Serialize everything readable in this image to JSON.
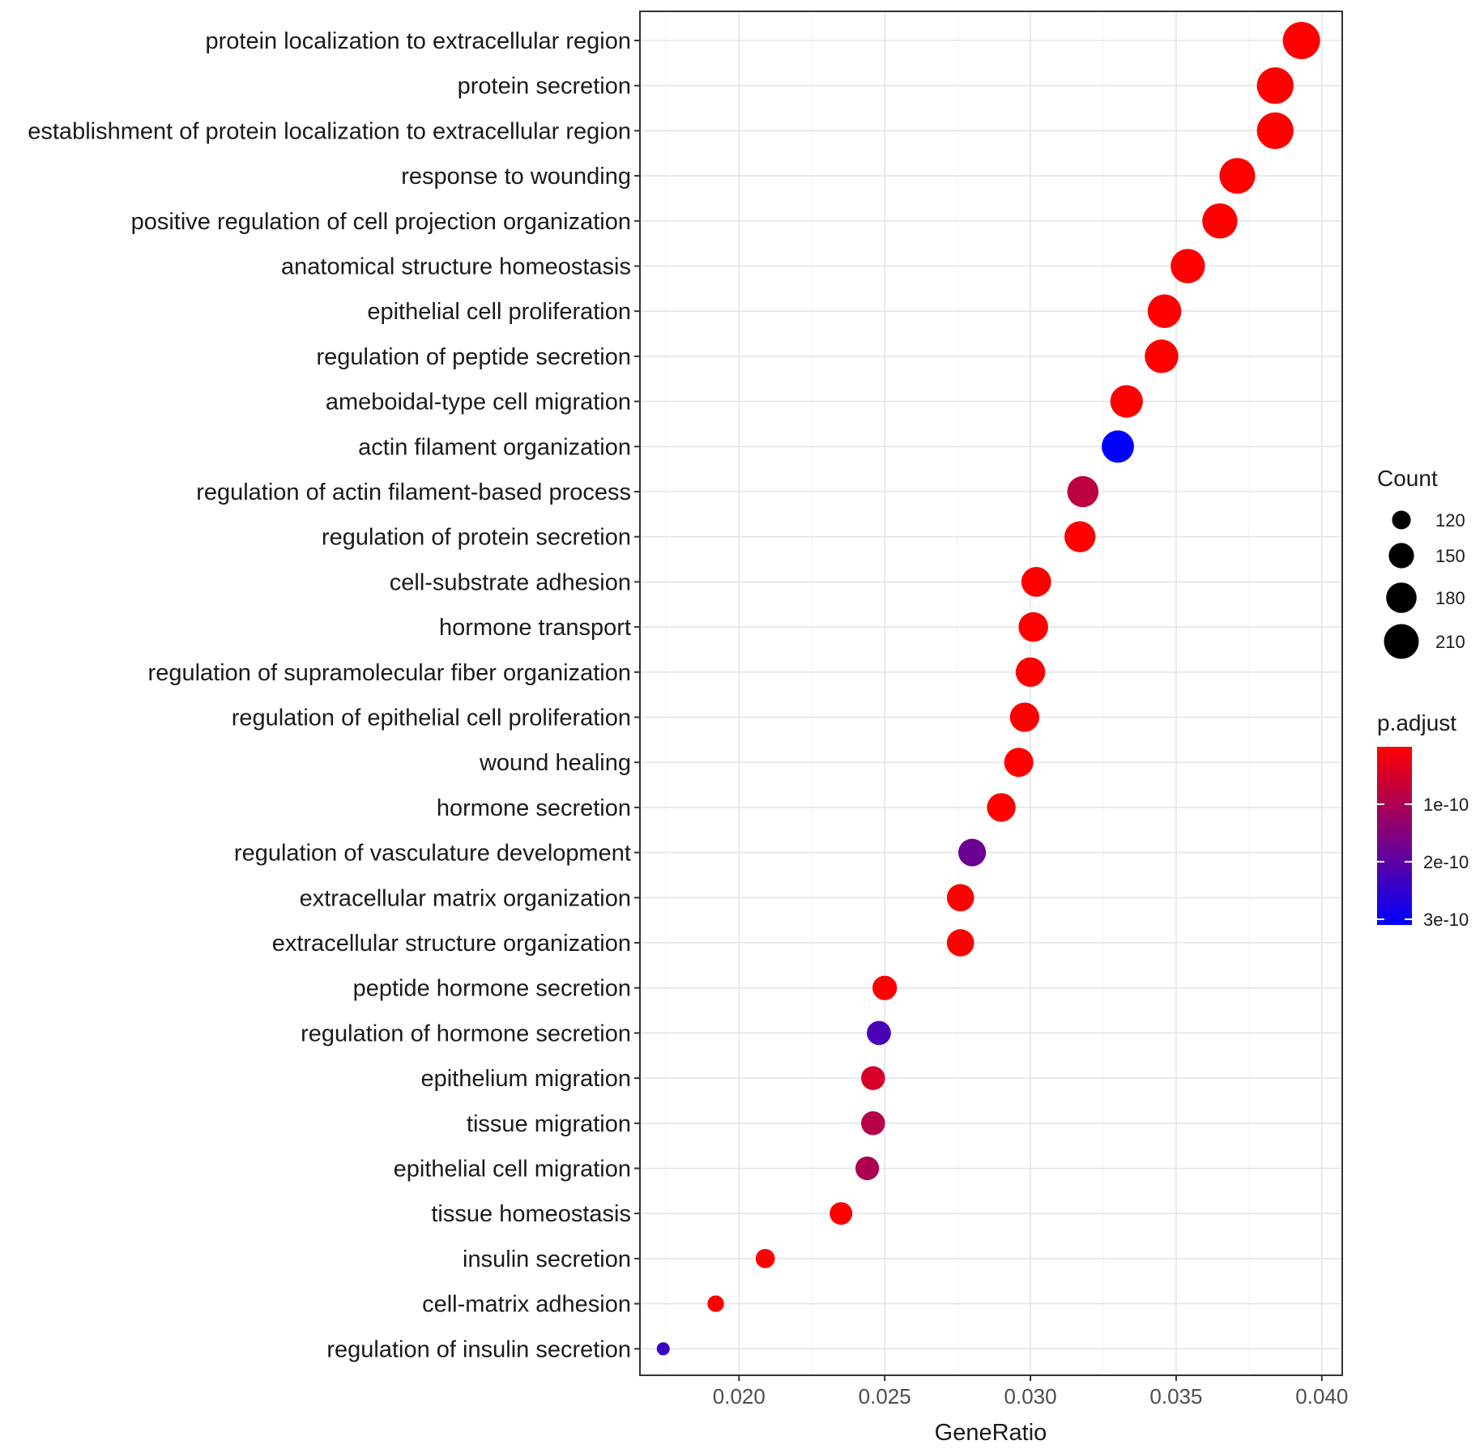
{
  "chart_data": {
    "type": "scatter",
    "subtype": "dotplot",
    "xlabel": "GeneRatio",
    "ylabel": "",
    "xlim": [
      0.0166,
      0.0407
    ],
    "xticks": [
      0.02,
      0.025,
      0.03,
      0.035,
      0.04
    ],
    "xtick_labels": [
      "0.020",
      "0.025",
      "0.030",
      "0.035",
      "0.040"
    ],
    "grid": true,
    "legend_position": "right",
    "categories": [
      "protein localization to extracellular region",
      "protein secretion",
      "establishment of protein localization to extracellular region",
      "response to wounding",
      "positive regulation of cell projection organization",
      "anatomical structure homeostasis",
      "epithelial cell proliferation",
      "regulation of peptide secretion",
      "ameboidal-type cell migration",
      "actin filament organization",
      "regulation of actin filament-based process",
      "regulation of protein secretion",
      "cell-substrate adhesion",
      "hormone transport",
      "regulation of supramolecular fiber organization",
      "regulation of epithelial cell proliferation",
      "wound healing",
      "hormone secretion",
      "regulation of vasculature development",
      "extracellular matrix organization",
      "extracellular structure organization",
      "peptide hormone secretion",
      "regulation of hormone secretion",
      "epithelium migration",
      "tissue migration",
      "epithelial cell migration",
      "tissue homeostasis",
      "insulin secretion",
      "cell-matrix adhesion",
      "regulation of insulin secretion"
    ],
    "gene_ratio": [
      0.0393,
      0.0384,
      0.0384,
      0.0371,
      0.0365,
      0.0354,
      0.0346,
      0.0345,
      0.0333,
      0.033,
      0.0318,
      0.0317,
      0.0302,
      0.0301,
      0.03,
      0.0298,
      0.0296,
      0.029,
      0.028,
      0.0276,
      0.0276,
      0.025,
      0.0248,
      0.0246,
      0.0246,
      0.0244,
      0.0235,
      0.0209,
      0.0192,
      0.0174
    ],
    "count": [
      228,
      223,
      223,
      216,
      212,
      206,
      201,
      201,
      194,
      192,
      185,
      184,
      176,
      175,
      174,
      173,
      172,
      169,
      163,
      161,
      161,
      146,
      144,
      143,
      143,
      142,
      137,
      122,
      112,
      101
    ],
    "p_adjust": [
      1e-13,
      1e-13,
      1e-13,
      1e-13,
      1e-13,
      1e-13,
      1e-13,
      1e-13,
      1e-13,
      3.1e-10,
      8e-11,
      1e-13,
      1e-13,
      1e-13,
      1e-13,
      1e-13,
      1e-13,
      1e-13,
      1.8e-10,
      1e-13,
      1e-13,
      1e-13,
      2.2e-10,
      5e-11,
      9e-11,
      1e-10,
      1e-13,
      1e-13,
      1e-13,
      2.4e-10
    ],
    "size_legend": {
      "title": "Count",
      "breaks": [
        120,
        150,
        180,
        210
      ],
      "labels": [
        "120",
        "150",
        "180",
        "210"
      ]
    },
    "color_legend": {
      "title": "p.adjust",
      "breaks": [
        1e-10,
        2e-10,
        3e-10
      ],
      "labels": [
        "1e-10",
        "2e-10",
        "3e-10"
      ],
      "range": [
        1e-13,
        3.1e-10
      ],
      "low_color": "#ff0000",
      "high_color": "#0000ff"
    }
  }
}
